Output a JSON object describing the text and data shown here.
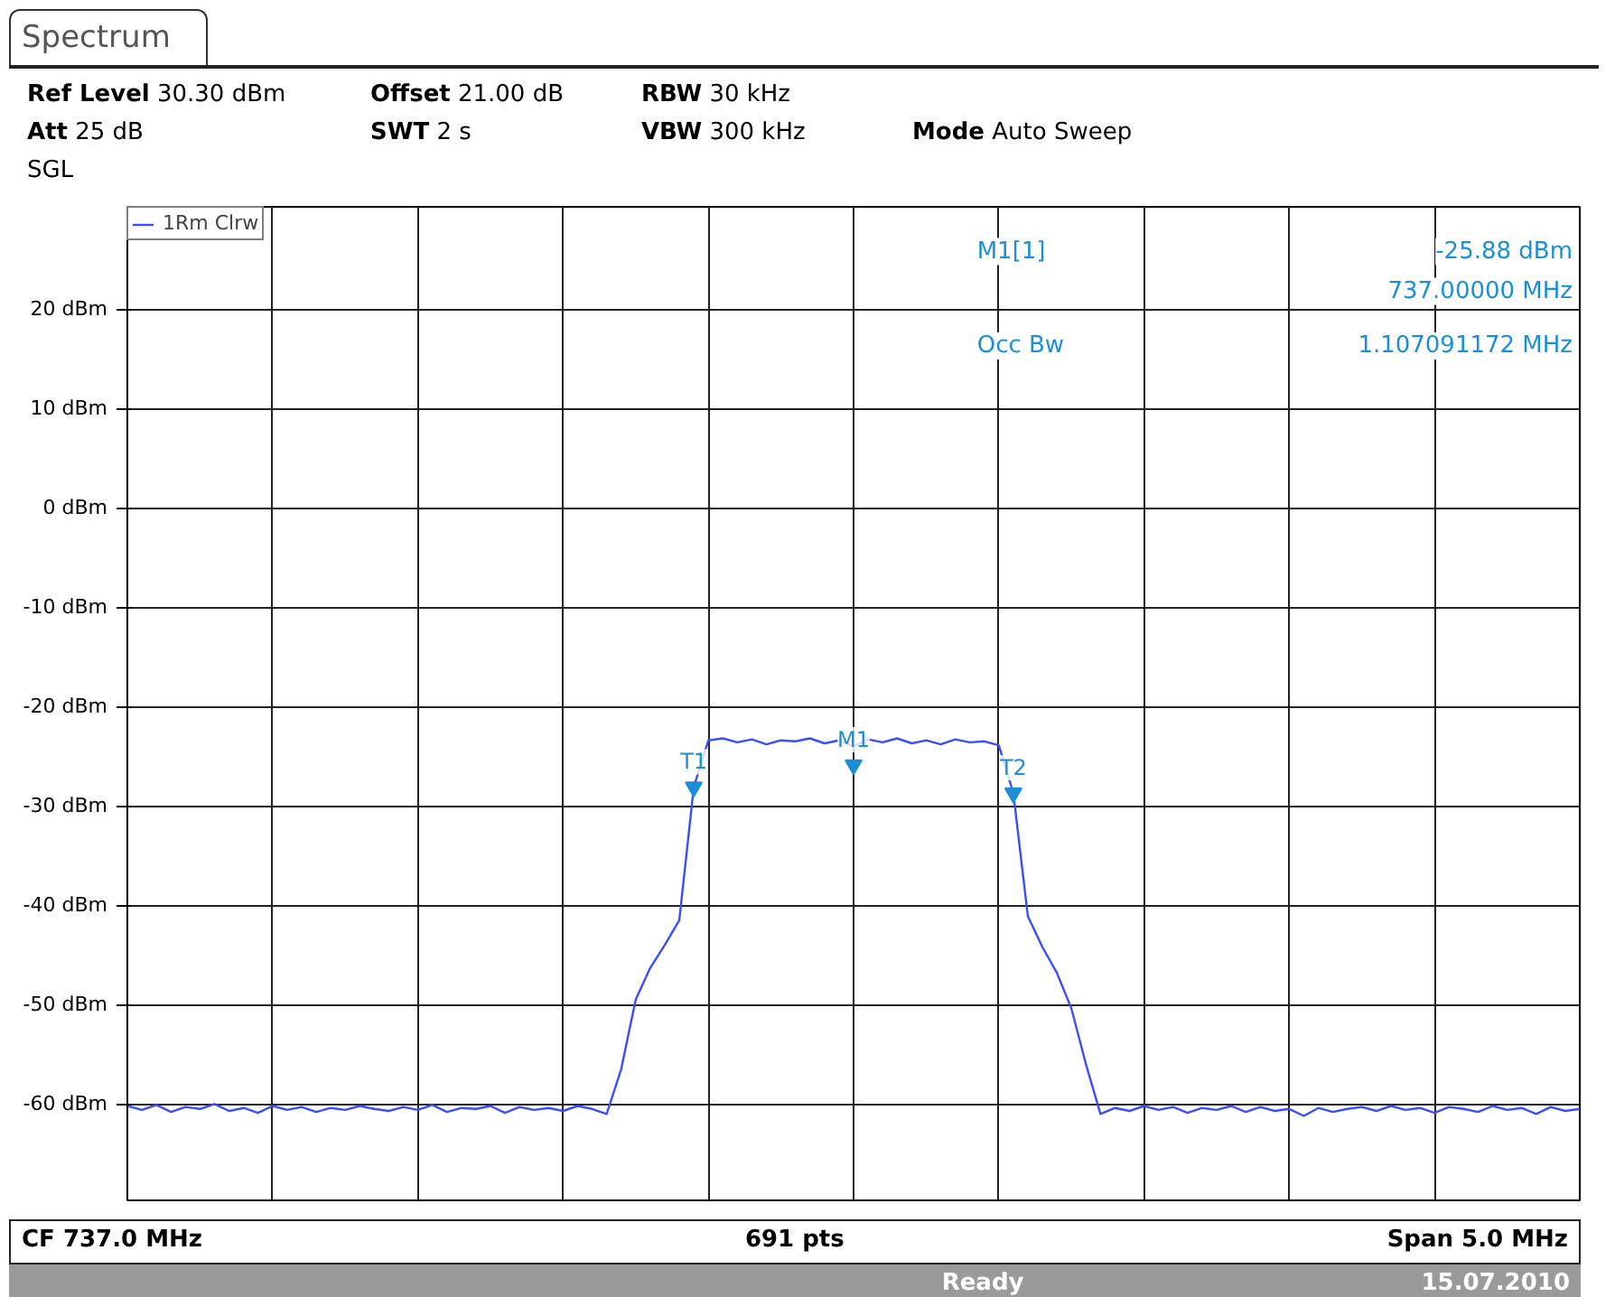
{
  "chart_data": {
    "type": "line",
    "title": "Spectrum",
    "categories": [
      null,
      null,
      null,
      null,
      null,
      null,
      null,
      null,
      null,
      null,
      null,
      null,
      null,
      null,
      null,
      null,
      null,
      null,
      null,
      null,
      null,
      null,
      null,
      null,
      null,
      null,
      null,
      null,
      null,
      null,
      null,
      null,
      null,
      null,
      null,
      null,
      null,
      null,
      null,
      null,
      null,
      null,
      null,
      null,
      null,
      null,
      null,
      null,
      null,
      null,
      null,
      null,
      null,
      null,
      null,
      null,
      null,
      null,
      null,
      null,
      null,
      null,
      null,
      null,
      null,
      null,
      null,
      null,
      null,
      null,
      null,
      null,
      null,
      null,
      null,
      null,
      null,
      null,
      null,
      null,
      null,
      null,
      null,
      null,
      null,
      null,
      null,
      null,
      null,
      null,
      null,
      null,
      null,
      null,
      null,
      null,
      null,
      null,
      null,
      null,
      null
    ],
    "ylim": [
      -69.7,
      30.3
    ],
    "yticks": [
      {
        "value": 20,
        "label": "20 dBm"
      },
      {
        "value": 10,
        "label": "10 dBm"
      },
      {
        "value": 0,
        "label": "0 dBm"
      },
      {
        "value": -10,
        "label": "-10 dBm"
      },
      {
        "value": -20,
        "label": "-20 dBm"
      },
      {
        "value": -30,
        "label": "-30 dBm"
      },
      {
        "value": -40,
        "label": "-40 dBm"
      },
      {
        "value": -50,
        "label": "-50 dBm"
      },
      {
        "value": -60,
        "label": "-60 dBm"
      }
    ],
    "grid": true,
    "legend": "top left",
    "marker": "none",
    "line_style": "solid",
    "series": [
      {
        "name": "1Rm Clrw",
        "color": "#3a4dff",
        "values": [
          -60.2,
          -60.6,
          -60.1,
          -60.8,
          -60.3,
          -60.5,
          -60.0,
          -60.7,
          -60.4,
          -60.9,
          -60.2,
          -60.6,
          -60.3,
          -60.8,
          -60.4,
          -60.6,
          -60.2,
          -60.5,
          -60.7,
          -60.3,
          -60.6,
          -60.1,
          -60.8,
          -60.4,
          -60.5,
          -60.2,
          -60.9,
          -60.3,
          -60.6,
          -60.4,
          -60.7,
          -60.2,
          -60.5,
          -61.0,
          -56.5,
          -49.5,
          -46.3,
          -44.0,
          -41.5,
          -28.1,
          -23.4,
          -23.2,
          -23.6,
          -23.3,
          -23.8,
          -23.4,
          -23.5,
          -23.2,
          -23.7,
          -23.4,
          -24.0,
          -23.3,
          -23.6,
          -23.2,
          -23.7,
          -23.4,
          -23.8,
          -23.3,
          -23.6,
          -23.5,
          -23.9,
          -28.7,
          -41.1,
          -44.2,
          -46.8,
          -50.4,
          -56.0,
          -61.0,
          -60.4,
          -60.7,
          -60.2,
          -60.6,
          -60.3,
          -60.9,
          -60.4,
          -60.6,
          -60.2,
          -60.8,
          -60.3,
          -60.7,
          -60.5,
          -61.2,
          -60.4,
          -60.8,
          -60.5,
          -60.3,
          -60.7,
          -60.2,
          -60.6,
          -60.4,
          -60.9,
          -60.3,
          -60.5,
          -60.8,
          -60.2,
          -60.6,
          -60.4,
          -61.0,
          -60.3,
          -60.7,
          -60.5
        ]
      },
      {
        "type": "scatter",
        "marker": "triangle",
        "color": "#1a8fd8",
        "values": [
          null,
          null,
          null,
          null,
          null,
          null,
          null,
          null,
          null,
          null,
          null,
          null,
          null,
          null,
          null,
          null,
          null,
          null,
          null,
          null,
          null,
          null,
          null,
          null,
          null,
          null,
          null,
          null,
          null,
          null,
          null,
          null,
          null,
          null,
          null,
          null,
          null,
          null,
          null,
          -28.1,
          null,
          null,
          null,
          null,
          null,
          null,
          null,
          null,
          null,
          null,
          -25.88,
          null,
          null,
          null,
          null,
          null,
          null,
          null,
          null,
          null,
          null,
          -28.7,
          null,
          null,
          null,
          null,
          null,
          null,
          null,
          null,
          null,
          null,
          null,
          null,
          null,
          null,
          null,
          null,
          null,
          null,
          null,
          null,
          null,
          null,
          null,
          null,
          null,
          null,
          null,
          null,
          null,
          null,
          null,
          null,
          null,
          null,
          null,
          null,
          null,
          null,
          null
        ],
        "value_labels": [
          null,
          null,
          null,
          null,
          null,
          null,
          null,
          null,
          null,
          null,
          null,
          null,
          null,
          null,
          null,
          null,
          null,
          null,
          null,
          null,
          null,
          null,
          null,
          null,
          null,
          null,
          null,
          null,
          null,
          null,
          null,
          null,
          null,
          null,
          null,
          null,
          null,
          null,
          null,
          "T1",
          null,
          null,
          null,
          null,
          null,
          null,
          null,
          null,
          null,
          null,
          "M1",
          null,
          null,
          null,
          null,
          null,
          null,
          null,
          null,
          null,
          null,
          "T2",
          null,
          null,
          null,
          null,
          null,
          null,
          null,
          null,
          null,
          null,
          null,
          null,
          null,
          null,
          null,
          null,
          null,
          null,
          null,
          null,
          null,
          null,
          null,
          null,
          null,
          null,
          null,
          null,
          null,
          null,
          null,
          null,
          null,
          null,
          null,
          null,
          null,
          null,
          null
        ]
      }
    ],
    "annotations": [
      "Ref Level 30.30 dBm",
      "Offset 21.00 dB",
      "RBW 30 kHz",
      "Att 25 dB",
      "SWT 2 s",
      "VBW 300 kHz",
      "Mode Auto Sweep",
      "SGL",
      "M1[1]",
      "-25.88 dBm",
      "737.00000 MHz",
      "Occ Bw",
      "1.107091172 MHz",
      "CF 737.0 MHz",
      "691 pts",
      "Span 5.0 MHz",
      "Ready",
      "15.07.2010"
    ]
  }
}
